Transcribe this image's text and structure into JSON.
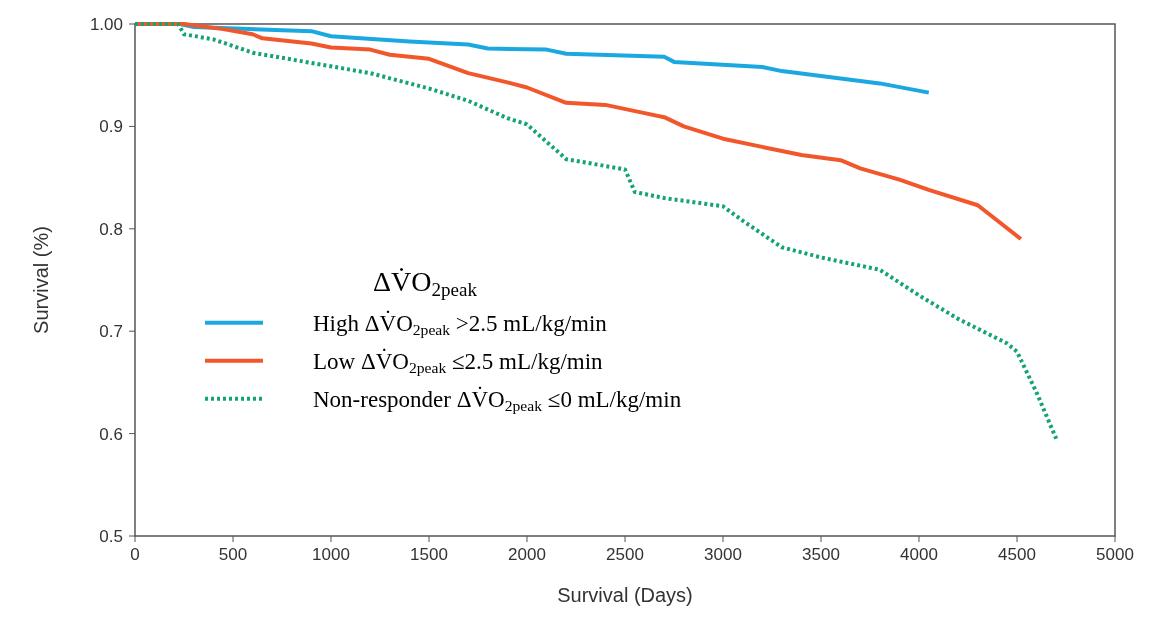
{
  "chart_data": {
    "type": "line",
    "xlabel": "Survival (Days)",
    "ylabel": "Survival (%)",
    "xlim": [
      0,
      5000
    ],
    "xticks": [
      0,
      500,
      1000,
      1500,
      2000,
      2500,
      3000,
      3500,
      4000,
      4500,
      5000
    ],
    "ylim": [
      0.5,
      1.0
    ],
    "yticks": [
      {
        "value": 0.5,
        "label": "0.5"
      },
      {
        "value": 0.6,
        "label": "0.6"
      },
      {
        "value": 0.7,
        "label": "0.7"
      },
      {
        "value": 0.8,
        "label": "0.8"
      },
      {
        "value": 0.9,
        "label": "0.9"
      },
      {
        "value": 1.0,
        "label": "1.00"
      }
    ],
    "grid": false,
    "legend": "left",
    "legend_title": "ΔV̇O$_{2peak}$",
    "series": [
      {
        "name": "High ΔV̇O$_{2peak}$ >2.5 mL/kg/min",
        "color": "#1ba8e0",
        "line_style": "solid",
        "x": [
          0,
          230,
          300,
          900,
          1000,
          1400,
          1700,
          1800,
          2100,
          2200,
          2700,
          2750,
          3200,
          3300,
          3800,
          4050
        ],
        "values": [
          1.0,
          1.0,
          0.997,
          0.993,
          0.988,
          0.983,
          0.98,
          0.976,
          0.975,
          0.971,
          0.968,
          0.963,
          0.958,
          0.954,
          0.942,
          0.933
        ]
      },
      {
        "name": "Low ΔV̇O$_{2peak}$ ≤2.5 mL/kg/min",
        "color": "#f2572c",
        "line_style": "solid",
        "x": [
          0,
          250,
          450,
          600,
          650,
          900,
          1000,
          1200,
          1300,
          1500,
          1700,
          1900,
          2000,
          2200,
          2400,
          2600,
          2700,
          2800,
          3000,
          3200,
          3400,
          3600,
          3700,
          3900,
          4050,
          4300,
          4520
        ],
        "values": [
          1.0,
          1.0,
          0.995,
          0.99,
          0.986,
          0.981,
          0.977,
          0.975,
          0.97,
          0.966,
          0.952,
          0.943,
          0.938,
          0.923,
          0.921,
          0.913,
          0.909,
          0.9,
          0.888,
          0.88,
          0.872,
          0.867,
          0.859,
          0.848,
          0.838,
          0.823,
          0.79
        ]
      },
      {
        "name": "Non-responder ΔV̇O$_{2peak}$ ≤0 mL/kg/min",
        "color": "#13a46f",
        "line_style": "dotted",
        "x": [
          0,
          220,
          250,
          400,
          600,
          900,
          1200,
          1500,
          1700,
          1900,
          2000,
          2100,
          2200,
          2500,
          2550,
          2700,
          3000,
          3100,
          3300,
          3500,
          3800,
          4000,
          4200,
          4450,
          4500,
          4600,
          4700
        ],
        "values": [
          1.0,
          1.0,
          0.99,
          0.985,
          0.972,
          0.962,
          0.952,
          0.937,
          0.925,
          0.908,
          0.902,
          0.885,
          0.868,
          0.858,
          0.836,
          0.83,
          0.822,
          0.808,
          0.782,
          0.772,
          0.76,
          0.735,
          0.712,
          0.688,
          0.68,
          0.64,
          0.595
        ]
      }
    ]
  }
}
